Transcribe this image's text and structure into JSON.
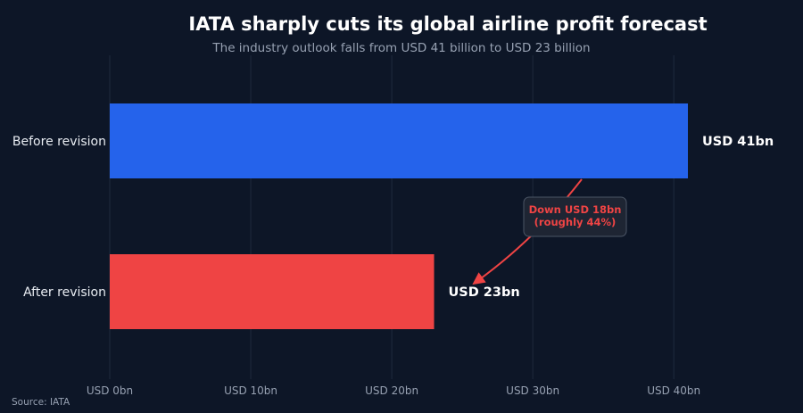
{
  "chart_data": {
    "type": "bar",
    "orientation": "horizontal",
    "title": "IATA sharply cuts its global airline profit forecast",
    "subtitle": "The industry outlook falls from USD 41 billion to USD 23 billion",
    "categories": [
      "Before revision",
      "After revision"
    ],
    "values": [
      41,
      23
    ],
    "value_labels": [
      "USD 41bn",
      "USD 23bn"
    ],
    "bar_colors": [
      "#2563eb",
      "#ef4444"
    ],
    "xlim": [
      0,
      41
    ],
    "xticks": [
      0,
      10,
      20,
      30,
      40
    ],
    "xtick_labels": [
      "USD 0bn",
      "USD 10bn",
      "USD 20bn",
      "USD 30bn",
      "USD 40bn"
    ],
    "xlabel": "",
    "ylabel": "",
    "grid": "vertical",
    "legend": "none",
    "annotation": {
      "lines": [
        "Down USD 18bn",
        "(roughly 44%)"
      ],
      "color": "#ef4444",
      "arrow_from": "Before revision",
      "arrow_to": "After revision"
    },
    "source": "Source: IATA"
  },
  "colors": {
    "background": "#0d1627",
    "gridline": "#1f2a3d",
    "annotation_box": "#1e2533",
    "annotation_border": "#4b5565"
  }
}
